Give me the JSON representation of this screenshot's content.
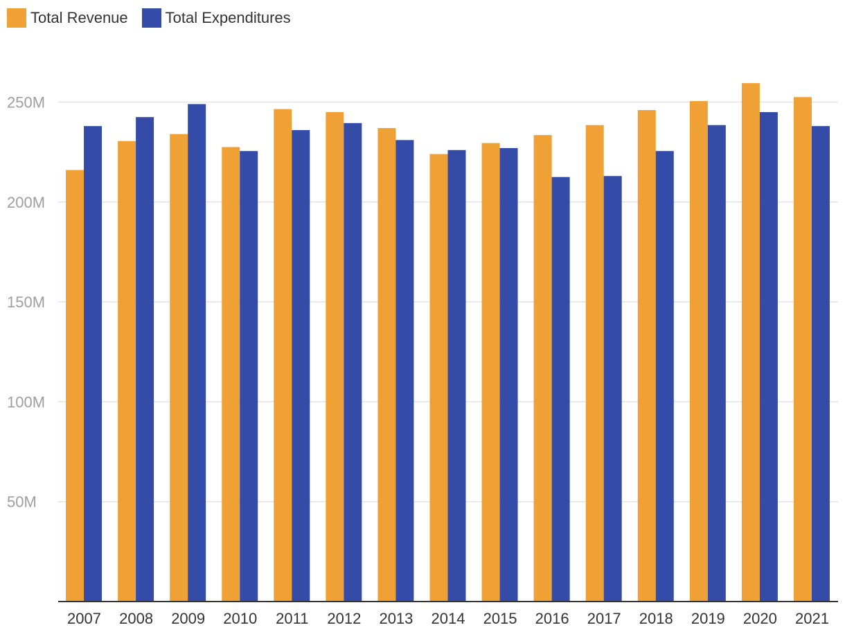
{
  "chart_data": {
    "type": "bar",
    "title": "",
    "xlabel": "",
    "ylabel": "",
    "categories": [
      "2007",
      "2008",
      "2009",
      "2010",
      "2011",
      "2012",
      "2013",
      "2014",
      "2015",
      "2016",
      "2017",
      "2018",
      "2019",
      "2020",
      "2021"
    ],
    "series": [
      {
        "name": "Total Revenue",
        "color": "#f0a136",
        "values": [
          216,
          230.5,
          234,
          227.5,
          246.5,
          245,
          237,
          224,
          229.5,
          233.5,
          238.5,
          246,
          250.5,
          259.5,
          252.5
        ]
      },
      {
        "name": "Total Expenditures",
        "color": "#344ca8",
        "values": [
          238,
          242.5,
          249,
          225.5,
          236,
          239.5,
          231,
          226,
          227,
          212.5,
          213,
          225.5,
          238.5,
          245,
          238
        ]
      }
    ],
    "ylim": [
      0,
      270
    ],
    "yticks": [
      {
        "value": 50,
        "label": "50M"
      },
      {
        "value": 100,
        "label": "100M"
      },
      {
        "value": 150,
        "label": "150M"
      },
      {
        "value": 200,
        "label": "200M"
      },
      {
        "value": 250,
        "label": "250M"
      }
    ],
    "grid": true,
    "legend_position": "top-left"
  }
}
